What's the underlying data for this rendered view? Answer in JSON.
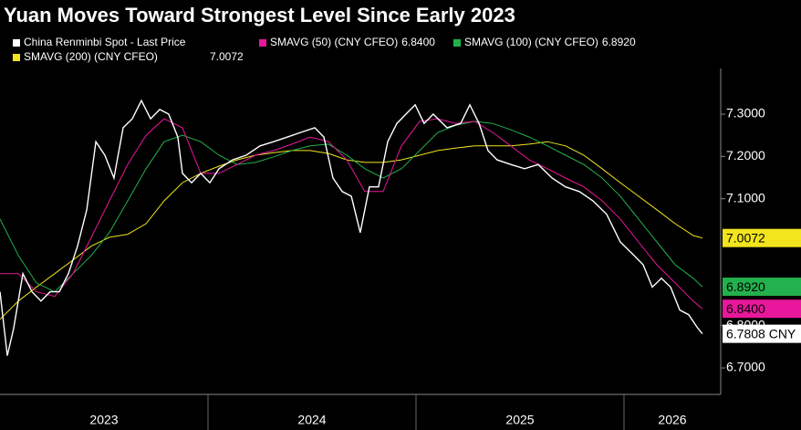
{
  "chart_data": {
    "type": "line",
    "title": "Yuan Moves Toward Strongest Level Since Early 2023",
    "xlim": [
      2023.0,
      2026.465
    ],
    "xticks": [
      {
        "value": 2023,
        "label": "2023"
      },
      {
        "value": 2024,
        "label": "2024"
      },
      {
        "value": 2025,
        "label": "2025"
      },
      {
        "value": 2026,
        "label": "2026"
      }
    ],
    "ylim": [
      6.6375,
      7.408
    ],
    "yticks": [
      {
        "value": 6.7,
        "label": "6.7000"
      },
      {
        "value": 6.8,
        "label": "6.8000"
      },
      {
        "value": 7.1,
        "label": "7.1000"
      },
      {
        "value": 7.2,
        "label": "7.2000"
      },
      {
        "value": 7.3,
        "label": "7.3000"
      }
    ],
    "series": [
      {
        "name": "China Renminbi Spot - Last Price",
        "color": "#ffffff",
        "end_label": "6.7808 CNY",
        "x": [
          2023.0,
          2023.035,
          2023.066,
          2023.11,
          2023.154,
          2023.197,
          2023.241,
          2023.285,
          2023.329,
          2023.373,
          2023.417,
          2023.461,
          2023.504,
          2023.548,
          2023.592,
          2023.636,
          2023.68,
          2023.724,
          2023.768,
          2023.811,
          2023.855,
          2023.877,
          2023.921,
          2023.965,
          2024.009,
          2024.053,
          2024.118,
          2024.184,
          2024.25,
          2024.316,
          2024.382,
          2024.447,
          2024.513,
          2024.557,
          2024.601,
          2024.645,
          2024.689,
          2024.732,
          2024.776,
          2024.82,
          2024.864,
          2024.908,
          2024.952,
          2024.996,
          2025.039,
          2025.083,
          2025.149,
          2025.215,
          2025.259,
          2025.303,
          2025.346,
          2025.39,
          2025.456,
          2025.522,
          2025.588,
          2025.654,
          2025.719,
          2025.785,
          2025.851,
          2025.917,
          2025.982,
          2026.048,
          2026.092,
          2026.136,
          2026.18,
          2026.224,
          2026.268,
          2026.311,
          2026.355,
          2026.377
        ],
        "values": [
          6.88,
          6.729,
          6.794,
          6.923,
          6.88,
          6.858,
          6.88,
          6.88,
          6.923,
          6.988,
          7.074,
          7.235,
          7.203,
          7.149,
          7.268,
          7.289,
          7.332,
          7.289,
          7.311,
          7.3,
          7.246,
          7.16,
          7.138,
          7.16,
          7.138,
          7.171,
          7.192,
          7.203,
          7.225,
          7.235,
          7.246,
          7.257,
          7.268,
          7.246,
          7.149,
          7.117,
          7.106,
          7.02,
          7.128,
          7.128,
          7.235,
          7.278,
          7.3,
          7.322,
          7.278,
          7.3,
          7.268,
          7.278,
          7.322,
          7.278,
          7.214,
          7.192,
          7.181,
          7.171,
          7.181,
          7.149,
          7.128,
          7.117,
          7.095,
          7.063,
          6.998,
          6.966,
          6.944,
          6.891,
          6.912,
          6.891,
          6.837,
          6.826,
          6.794,
          6.7808
        ]
      },
      {
        "name": "SMAVG (50) (CNY CFEO)",
        "legend_value": "6.8400",
        "end_label": "6.8400",
        "color": "#e8179b",
        "x": [
          2023.0,
          2023.088,
          2023.175,
          2023.263,
          2023.351,
          2023.439,
          2023.526,
          2023.614,
          2023.702,
          2023.789,
          2023.877,
          2023.965,
          2024.053,
          2024.14,
          2024.228,
          2024.316,
          2024.404,
          2024.491,
          2024.579,
          2024.667,
          2024.754,
          2024.842,
          2024.93,
          2025.018,
          2025.105,
          2025.193,
          2025.281,
          2025.368,
          2025.456,
          2025.544,
          2025.632,
          2025.719,
          2025.807,
          2025.895,
          2025.982,
          2026.07,
          2026.158,
          2026.246,
          2026.333,
          2026.377
        ],
        "values": [
          6.923,
          6.923,
          6.88,
          6.869,
          6.923,
          7.009,
          7.095,
          7.181,
          7.25,
          7.289,
          7.268,
          7.16,
          7.16,
          7.181,
          7.203,
          7.214,
          7.229,
          7.246,
          7.235,
          7.192,
          7.117,
          7.117,
          7.225,
          7.283,
          7.289,
          7.278,
          7.283,
          7.257,
          7.225,
          7.192,
          7.171,
          7.149,
          7.128,
          7.095,
          7.052,
          6.998,
          6.944,
          6.901,
          6.858,
          6.84
        ]
      },
      {
        "name": "SMAVG (100) (CNY CFEO)",
        "legend_value": "6.8920",
        "end_label": "6.8920",
        "color": "#22b14c",
        "x": [
          2023.0,
          2023.088,
          2023.175,
          2023.263,
          2023.351,
          2023.439,
          2023.526,
          2023.614,
          2023.702,
          2023.789,
          2023.877,
          2023.965,
          2024.053,
          2024.14,
          2024.228,
          2024.316,
          2024.404,
          2024.491,
          2024.579,
          2024.667,
          2024.754,
          2024.842,
          2024.93,
          2025.018,
          2025.105,
          2025.193,
          2025.281,
          2025.368,
          2025.456,
          2025.544,
          2025.632,
          2025.719,
          2025.807,
          2025.895,
          2025.982,
          2026.07,
          2026.158,
          2026.246,
          2026.333,
          2026.377
        ],
        "values": [
          7.052,
          6.966,
          6.901,
          6.88,
          6.923,
          6.966,
          7.02,
          7.095,
          7.171,
          7.235,
          7.25,
          7.235,
          7.203,
          7.181,
          7.186,
          7.199,
          7.214,
          7.225,
          7.229,
          7.203,
          7.171,
          7.149,
          7.171,
          7.214,
          7.257,
          7.274,
          7.283,
          7.278,
          7.263,
          7.246,
          7.225,
          7.203,
          7.181,
          7.149,
          7.106,
          7.052,
          6.998,
          6.944,
          6.912,
          6.892
        ]
      },
      {
        "name": "SMAVG (200) (CNY CFEO)",
        "legend_value": "7.0072",
        "end_label": "7.0072",
        "color": "#f2e51d",
        "x": [
          2023.0,
          2023.088,
          2023.175,
          2023.263,
          2023.351,
          2023.439,
          2023.526,
          2023.614,
          2023.702,
          2023.789,
          2023.877,
          2023.965,
          2024.053,
          2024.14,
          2024.228,
          2024.316,
          2024.404,
          2024.491,
          2024.579,
          2024.667,
          2024.754,
          2024.842,
          2024.93,
          2025.018,
          2025.105,
          2025.193,
          2025.281,
          2025.368,
          2025.456,
          2025.544,
          2025.632,
          2025.719,
          2025.807,
          2025.895,
          2025.982,
          2026.07,
          2026.158,
          2026.246,
          2026.333,
          2026.377
        ],
        "values": [
          6.815,
          6.858,
          6.891,
          6.923,
          6.955,
          6.988,
          7.009,
          7.016,
          7.041,
          7.095,
          7.138,
          7.16,
          7.177,
          7.192,
          7.203,
          7.209,
          7.214,
          7.214,
          7.207,
          7.192,
          7.186,
          7.186,
          7.192,
          7.203,
          7.214,
          7.22,
          7.225,
          7.225,
          7.225,
          7.229,
          7.235,
          7.225,
          7.203,
          7.171,
          7.138,
          7.106,
          7.074,
          7.041,
          7.013,
          7.0072
        ]
      }
    ]
  }
}
